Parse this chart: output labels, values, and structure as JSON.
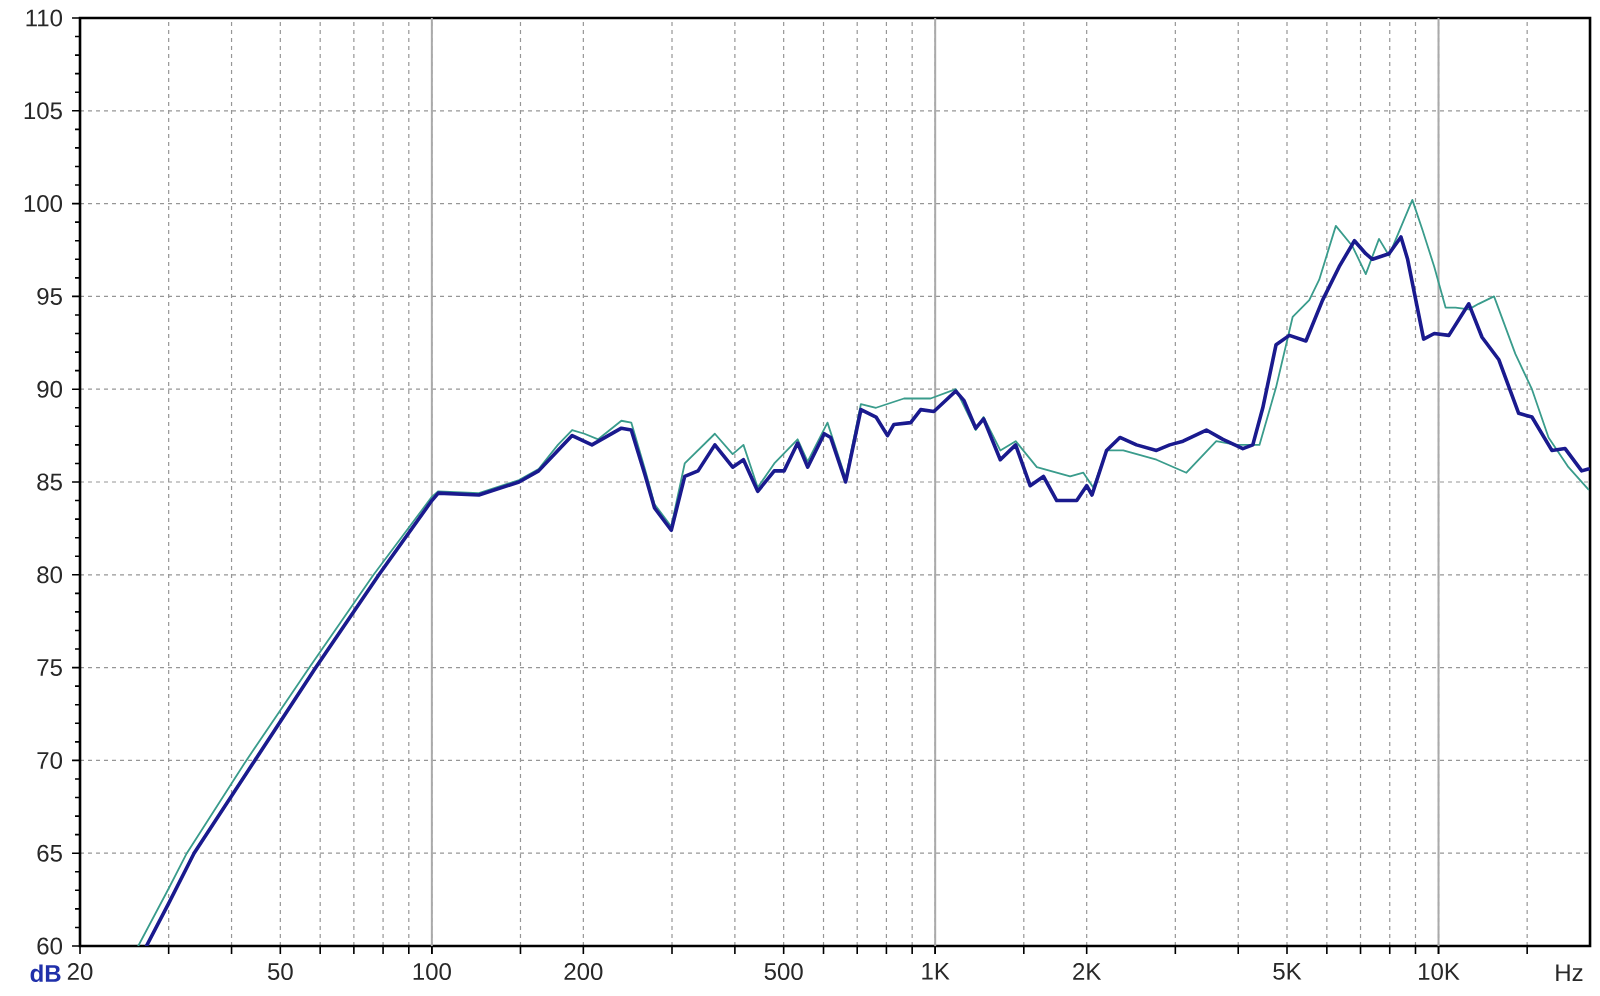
{
  "chart_data": {
    "type": "line",
    "xlabel": "Hz",
    "ylabel": "dB",
    "log": "x",
    "grid": true,
    "xlim": [
      20,
      20000
    ],
    "ylim": [
      60,
      110
    ],
    "xticks": [
      20,
      {
        "value": 30,
        "label": null
      },
      {
        "value": 40,
        "label": null
      },
      50,
      {
        "value": 60,
        "label": null
      },
      {
        "value": 70,
        "label": null
      },
      {
        "value": 80,
        "label": null
      },
      {
        "value": 90,
        "label": null
      },
      100,
      {
        "value": 150,
        "label": null
      },
      200,
      {
        "value": 300,
        "label": null
      },
      {
        "value": 400,
        "label": null
      },
      500,
      {
        "value": 600,
        "label": null
      },
      {
        "value": 700,
        "label": null
      },
      {
        "value": 800,
        "label": null
      },
      {
        "value": 900,
        "label": null
      },
      {
        "value": 1000,
        "label": "1K"
      },
      {
        "value": 1500,
        "label": null
      },
      {
        "value": 2000,
        "label": "2K"
      },
      {
        "value": 3000,
        "label": null
      },
      {
        "value": 4000,
        "label": null
      },
      {
        "value": 5000,
        "label": "5K"
      },
      {
        "value": 6000,
        "label": null
      },
      {
        "value": 7000,
        "label": null
      },
      {
        "value": 8000,
        "label": null
      },
      {
        "value": 9000,
        "label": null
      },
      {
        "value": 10000,
        "label": "10K"
      },
      {
        "value": 15000,
        "label": null
      }
    ],
    "yticks": [
      60,
      65,
      70,
      75,
      80,
      85,
      90,
      95,
      100,
      105,
      110
    ],
    "series": [
      {
        "color": "#3a9c8c",
        "x": [
          26.1,
          30,
          32.6,
          42.8,
          57.1,
          76.6,
          100,
          103,
          124,
          149,
          163,
          178,
          190,
          201,
          214,
          238,
          249,
          265,
          277,
          299,
          318,
          365,
          396,
          416,
          444,
          479,
          533,
          558,
          611,
          664,
          712,
          763,
          867,
          979,
          1099,
          1204,
          1248,
          1347,
          1445,
          1592,
          1854,
          1970,
          2061,
          2190,
          2364,
          2752,
          3156,
          3618,
          3964,
          4408,
          4756,
          5132,
          5536,
          5794,
          6252,
          6746,
          7170,
          7618,
          7974,
          8872,
          9286,
          9806,
          10328,
          10810,
          11486,
          12018,
          12892,
          14212,
          15332,
          16542,
          18120,
          19848
        ],
        "values": [
          60.0,
          63.1,
          65.0,
          70.0,
          75.0,
          80.0,
          84.2,
          84.5,
          84.4,
          85.1,
          85.7,
          87.0,
          87.8,
          87.6,
          87.3,
          88.3,
          88.2,
          85.7,
          83.8,
          82.6,
          86.0,
          87.6,
          86.5,
          87.0,
          84.7,
          86.0,
          87.3,
          86.1,
          88.2,
          85.2,
          89.2,
          89.0,
          89.5,
          89.5,
          90.0,
          87.8,
          88.5,
          86.7,
          87.2,
          85.8,
          85.3,
          85.5,
          84.7,
          86.7,
          86.7,
          86.2,
          85.5,
          87.2,
          87.0,
          87.0,
          90.1,
          93.9,
          94.8,
          95.9,
          98.8,
          97.7,
          96.2,
          98.1,
          97.2,
          100.2,
          98.6,
          96.6,
          94.4,
          94.4,
          94.3,
          94.6,
          95.0,
          91.9,
          90.0,
          87.4,
          85.8,
          84.6
        ]
      },
      {
        "color": "#1a1a8e",
        "x": [
          27.1,
          30,
          33.7,
          44.5,
          58.8,
          78.5,
          100,
          103,
          124,
          149,
          163,
          178,
          190,
          208,
          238,
          249,
          265,
          277,
          299,
          318,
          338,
          365,
          396,
          416,
          444,
          479,
          501,
          533,
          558,
          602,
          620,
          664,
          712,
          763,
          804,
          828,
          894,
          936,
          994,
          1099,
          1140,
          1204,
          1248,
          1347,
          1445,
          1544,
          1641,
          1744,
          1911,
          2000,
          2049,
          2190,
          2328,
          2512,
          2752,
          2924,
          3108,
          3458,
          3730,
          4086,
          4276,
          4476,
          4756,
          5054,
          5452,
          5884,
          6348,
          6808,
          7170,
          7392,
          7974,
          8422,
          8682,
          9342,
          9806,
          10486,
          11486,
          12202,
          13170,
          14430,
          15332,
          16048,
          16796,
          17846,
          19254,
          19848
        ],
        "values": [
          60.0,
          62.3,
          65.0,
          70.0,
          75.0,
          80.0,
          84.0,
          84.4,
          84.3,
          85.0,
          85.6,
          86.7,
          87.5,
          87.0,
          87.9,
          87.8,
          85.4,
          83.6,
          82.4,
          85.3,
          85.6,
          87.0,
          85.8,
          86.2,
          84.5,
          85.6,
          85.6,
          87.1,
          85.8,
          87.6,
          87.4,
          85.0,
          88.9,
          88.5,
          87.5,
          88.1,
          88.2,
          88.9,
          88.8,
          89.9,
          89.4,
          87.9,
          88.4,
          86.2,
          87.0,
          84.8,
          85.3,
          84.0,
          84.0,
          84.8,
          84.3,
          86.7,
          87.4,
          87.0,
          86.7,
          87.0,
          87.2,
          87.8,
          87.3,
          86.8,
          87.0,
          89.0,
          92.4,
          92.9,
          92.6,
          94.8,
          96.6,
          98.0,
          97.3,
          97.0,
          97.3,
          98.2,
          97.0,
          92.7,
          93.0,
          92.9,
          94.6,
          92.8,
          91.6,
          88.7,
          88.5,
          87.6,
          86.7,
          86.8,
          85.6,
          85.7
        ]
      }
    ]
  }
}
